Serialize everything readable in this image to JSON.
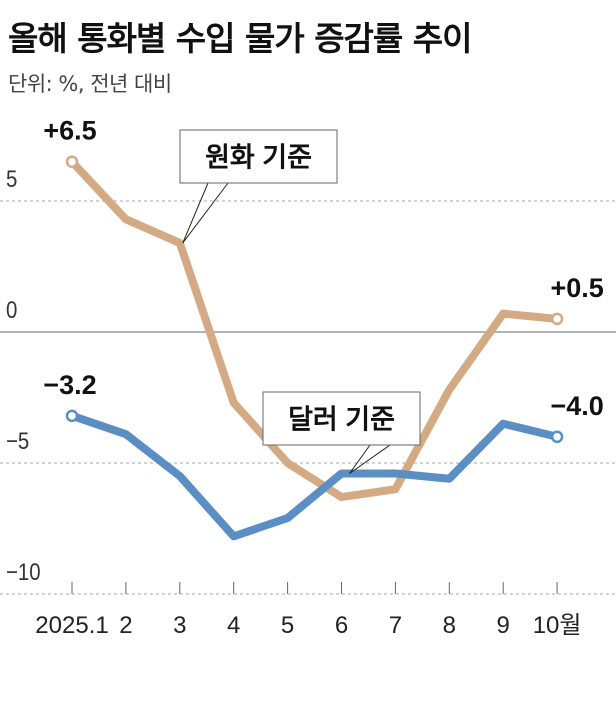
{
  "chart_data": {
    "type": "line",
    "title": "올해 통화별 수입 물가 증감률 추이",
    "unit_label": "단위: %, 전년 대비",
    "categories": [
      "2025.1",
      "2",
      "3",
      "4",
      "5",
      "6",
      "7",
      "8",
      "9",
      "10월"
    ],
    "ylim": [
      -10,
      7
    ],
    "yticks": [
      5,
      0,
      -5,
      -10
    ],
    "ytick_labels": [
      "5",
      "0",
      "−5",
      "−10"
    ],
    "grid": true,
    "series": [
      {
        "name": "원화 기준",
        "color": "#d4aa85",
        "values": [
          6.5,
          4.3,
          3.4,
          -2.7,
          -5.0,
          -6.3,
          -6.0,
          -2.2,
          0.7,
          0.5
        ],
        "start_label": "+6.5",
        "end_label": "+0.5"
      },
      {
        "name": "달러 기준",
        "color": "#5b8fc4",
        "values": [
          -3.2,
          -3.9,
          -5.5,
          -7.8,
          -7.1,
          -5.4,
          -5.4,
          -5.6,
          -3.5,
          -4.0
        ],
        "start_label": "−3.2",
        "end_label": "−4.0"
      }
    ]
  }
}
